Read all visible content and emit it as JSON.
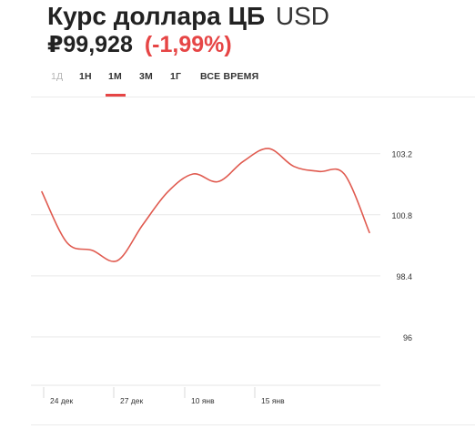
{
  "header": {
    "title": "Курс доллара ЦБ",
    "currency": "USD",
    "price": "₽99,928",
    "change": "(-1,99%)",
    "change_color": "#e64545"
  },
  "tabs": [
    {
      "label": "1Д",
      "active": false,
      "disabled": true
    },
    {
      "label": "1Н",
      "active": false,
      "disabled": false
    },
    {
      "label": "1М",
      "active": true,
      "disabled": false
    },
    {
      "label": "3М",
      "active": false,
      "disabled": false
    },
    {
      "label": "1Г",
      "active": false,
      "disabled": false
    },
    {
      "label": "ВСЕ ВРЕМЯ",
      "active": false,
      "disabled": false
    }
  ],
  "chart_data": {
    "type": "line",
    "title": "",
    "xlabel": "",
    "ylabel": "",
    "y_ticks": [
      96,
      98.4,
      100.8,
      103.2
    ],
    "y_tick_labels": [
      "96",
      "98.4",
      "100.8",
      "103.2"
    ],
    "x_tick_labels": [
      "24 дек",
      "27 дек",
      "10 янв",
      "15 янв"
    ],
    "ylim": [
      94.1,
      105.3
    ],
    "grid": true,
    "line_color": "#e05a4f",
    "series": [
      {
        "values": [
          101.7,
          99.7,
          99.4,
          99.0,
          100.4,
          101.7,
          102.4,
          102.1,
          102.9,
          103.4,
          102.7,
          102.5,
          102.4,
          100.1
        ]
      }
    ]
  }
}
